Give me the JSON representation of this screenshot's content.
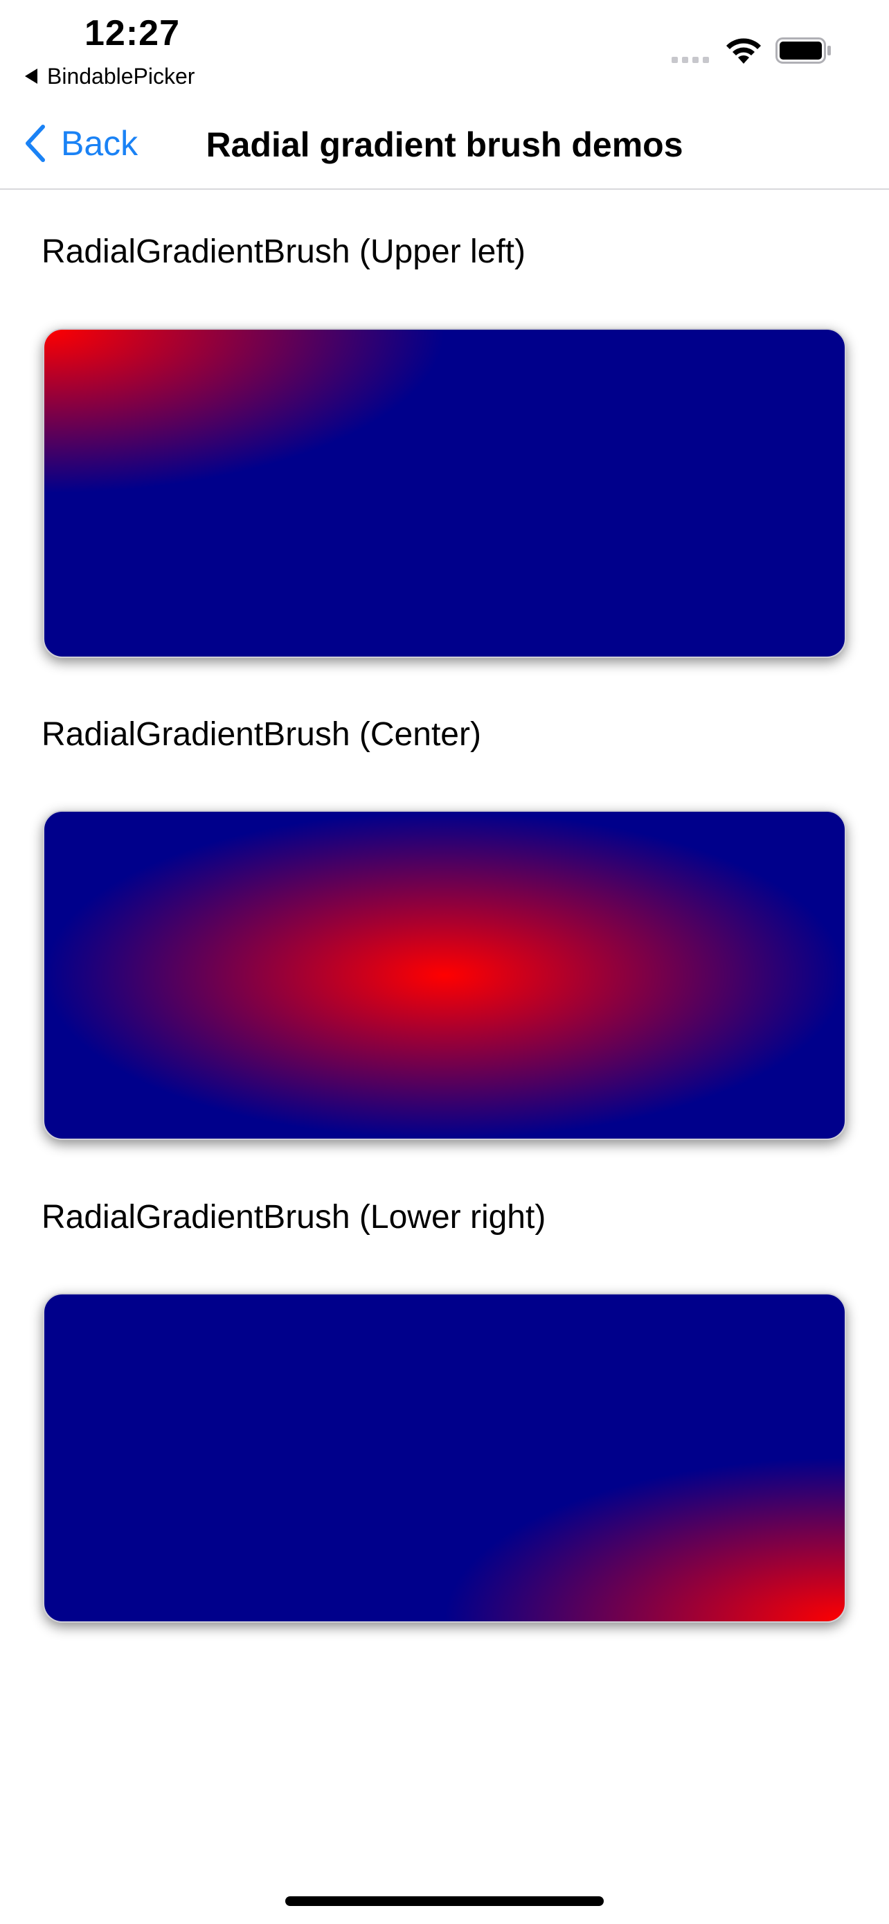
{
  "status_bar": {
    "time": "12:27",
    "back_app_label": "BindablePicker",
    "icons": [
      "signal-icon",
      "wifi-icon",
      "battery-icon"
    ]
  },
  "nav": {
    "back_label": "Back",
    "title": "Radial gradient brush demos",
    "accent_color": "#1a82f5"
  },
  "demos": [
    {
      "title": "RadialGradientBrush (Upper left)",
      "center": "upper-left",
      "colors": [
        "#ff0000",
        "#00008b"
      ]
    },
    {
      "title": "RadialGradientBrush (Center)",
      "center": "center",
      "colors": [
        "#ff0000",
        "#00008b"
      ]
    },
    {
      "title": "RadialGradientBrush (Lower right)",
      "center": "lower-right",
      "colors": [
        "#ff0000",
        "#00008b"
      ]
    }
  ]
}
